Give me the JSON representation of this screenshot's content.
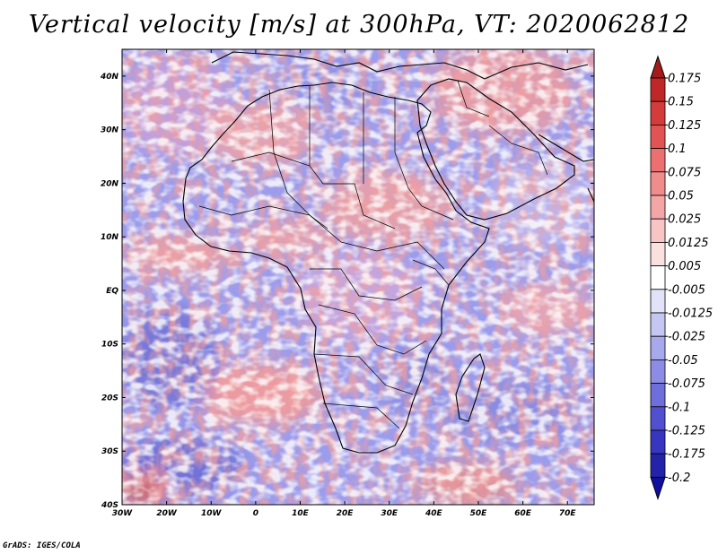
{
  "title": "Vertical velocity [m/s] at 300hPa, VT: 2020062812",
  "credit": "GrADS: IGES/COLA",
  "map": {
    "variable": "Vertical velocity",
    "units": "m/s",
    "level": "300hPa",
    "valid_time": "2020062812",
    "region": "Africa",
    "lon_range": [
      -30,
      76
    ],
    "lat_range": [
      -40,
      45
    ],
    "lat_labels": [
      {
        "value": 40,
        "text": "40N"
      },
      {
        "value": 30,
        "text": "30N"
      },
      {
        "value": 20,
        "text": "20N"
      },
      {
        "value": 10,
        "text": "10N"
      },
      {
        "value": 0,
        "text": "EQ"
      },
      {
        "value": -10,
        "text": "10S"
      },
      {
        "value": -20,
        "text": "20S"
      },
      {
        "value": -30,
        "text": "30S"
      },
      {
        "value": -40,
        "text": "40S"
      }
    ],
    "lon_labels": [
      {
        "value": -30,
        "text": "30W"
      },
      {
        "value": -20,
        "text": "20W"
      },
      {
        "value": -10,
        "text": "10W"
      },
      {
        "value": 0,
        "text": "0"
      },
      {
        "value": 10,
        "text": "10E"
      },
      {
        "value": 20,
        "text": "20E"
      },
      {
        "value": 30,
        "text": "30E"
      },
      {
        "value": 40,
        "text": "40E"
      },
      {
        "value": 50,
        "text": "50E"
      },
      {
        "value": 60,
        "text": "60E"
      },
      {
        "value": 70,
        "text": "70E"
      }
    ]
  },
  "colorbar": {
    "levels": [
      {
        "label": "0.175",
        "color": "#a51b1b"
      },
      {
        "label": "0.15",
        "color": "#c02828"
      },
      {
        "label": "0.125",
        "color": "#d43b3b"
      },
      {
        "label": "0.1",
        "color": "#e25454"
      },
      {
        "label": "0.075",
        "color": "#ec7070"
      },
      {
        "label": "0.05",
        "color": "#f08c8c"
      },
      {
        "label": "0.025",
        "color": "#f4a6a6"
      },
      {
        "label": "0.0125",
        "color": "#f8c4c4"
      },
      {
        "label": "0.005",
        "color": "#fbe0e0"
      },
      {
        "label": "-0.005",
        "color": "#ffffff"
      },
      {
        "label": "-0.0125",
        "color": "#e2e2f8"
      },
      {
        "label": "-0.025",
        "color": "#c6c6f2"
      },
      {
        "label": "-0.05",
        "color": "#a8a8ec"
      },
      {
        "label": "-0.075",
        "color": "#8c8ce6"
      },
      {
        "label": "-0.1",
        "color": "#6e6edc"
      },
      {
        "label": "-0.125",
        "color": "#5050d0"
      },
      {
        "label": "-0.175",
        "color": "#3636c0"
      },
      {
        "label": "-0.2",
        "color": "#2222aa"
      },
      {
        "label": "",
        "color": "#1010a0"
      }
    ]
  }
}
